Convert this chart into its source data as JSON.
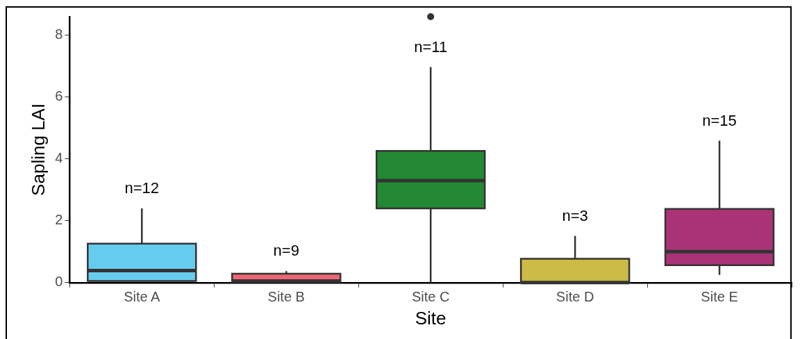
{
  "chart_data": {
    "type": "box",
    "xlabel": "Site",
    "ylabel": "Sapling LAI",
    "categories": [
      "Site A",
      "Site B",
      "Site C",
      "Site D",
      "Site E"
    ],
    "colors": [
      "#66ccee",
      "#ee6677",
      "#228833",
      "#ccbb44",
      "#aa3377"
    ],
    "boxes": [
      {
        "low": 0.05,
        "q1": 0.05,
        "median": 0.39,
        "q3": 1.26,
        "high": 2.4
      },
      {
        "low": 0,
        "q1": 0.02,
        "median": 0.05,
        "q3": 0.29,
        "high": 0.37
      },
      {
        "low": 0,
        "q1": 2.4,
        "median": 3.3,
        "q3": 4.26,
        "high": 6.97,
        "outliers": [
          8.6
        ]
      },
      {
        "low": 0,
        "q1": 0,
        "median": 0,
        "q3": 0.77,
        "high": 1.51
      },
      {
        "low": 0.25,
        "q1": 0.56,
        "median": 1.0,
        "q3": 2.38,
        "high": 4.59
      }
    ],
    "ylim": [
      0,
      8.6
    ],
    "yticks": [
      0,
      2,
      4,
      6,
      8
    ],
    "grid": false,
    "legend": false,
    "annotations": [
      "n=12",
      "n=9",
      "n=11",
      "n=3",
      "n=15"
    ]
  }
}
